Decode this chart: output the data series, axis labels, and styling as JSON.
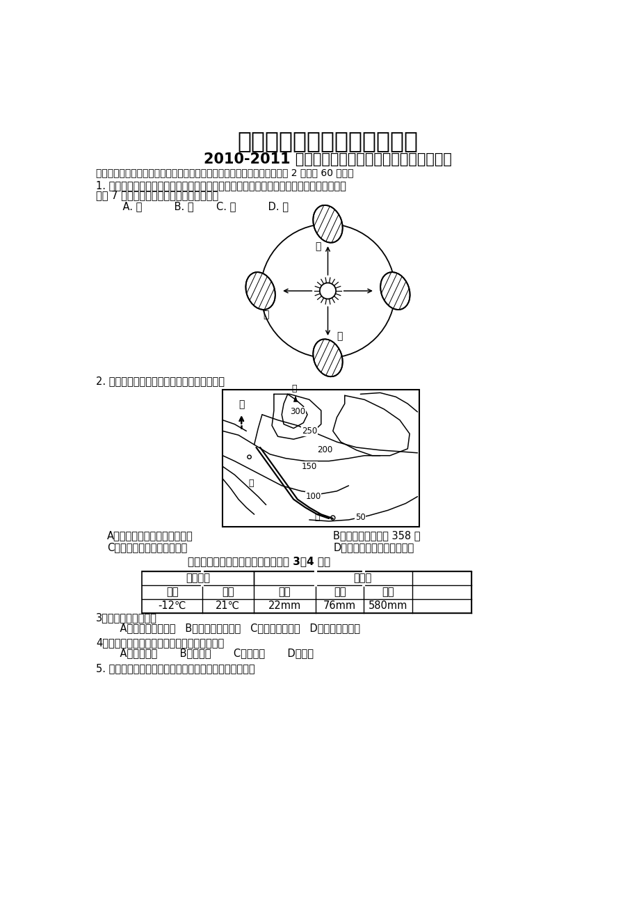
{
  "title1": "合肥一中、六中、一六八中学",
  "title2": "2010-2011 学年度第二学期高二期末联考地理测试卷",
  "section1": "一、选择题（每题只有一项正确选项，请将正确选项填涂到机读卡上。每题 2 分，共 60 分。）",
  "q1": "1. 淄博中学生小明到黑龙江漠河去旅游，他观察到：这一天太阳挂在空中的时间很短，只有",
  "q1b": "不足 7 个小时，这一天最有可能是下图中的",
  "q1c": "    A. 甲          B. 乙       C. 丙          D. 丁",
  "q2": "2. 读下面的等高线地形图，下列说法正确的是",
  "q2a": "A．甲处地形部位的名称是山脊",
  "q2b": "B．甲处的海拔约为 358 米",
  "q2c": "C．小河的流向是西北向东南",
  "q2d": "D．小河的流向是东南向西北",
  "table_title": "下表为世界某地气候资料，据表回答 3～4 题。",
  "q3": "3．该种气候类型属于",
  "q3opts": "    A．温带大陆性气候   B．亚热带季风气候   C．热带雨林气候   D．热带季风气候",
  "q4": "4．下列城市的气候特征和上表资料最接近的是",
  "q4opts": "    A．巴西利亚       B．莫斯科       C．雅加达       D．首尔",
  "q5": "5. 读下图气温曲线和降水柱状图，判断下列说法正确的是",
  "bg_color": "#ffffff",
  "text_color": "#000000"
}
